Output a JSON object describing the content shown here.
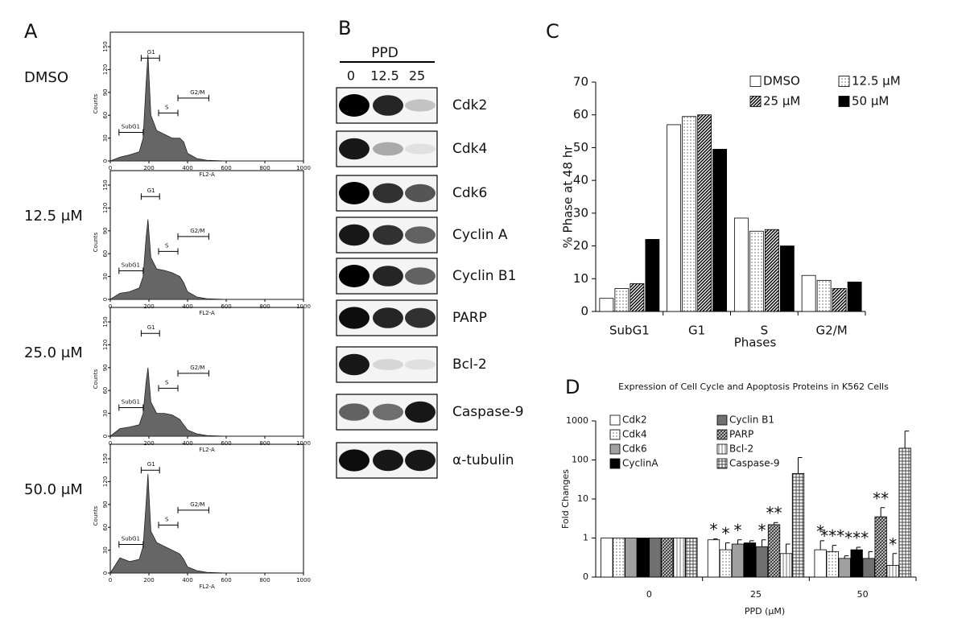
{
  "panels": {
    "labels": [
      "A",
      "B",
      "C",
      "D"
    ]
  },
  "blot": {
    "treatment": "PPD",
    "lanes": [
      "0",
      "12.5",
      "25"
    ],
    "proteins": [
      "Cdk2",
      "Cdk4",
      "Cdk6",
      "Cyclin A",
      "Cyclin B1",
      "PARP",
      "Bcl-2",
      "Caspase-9",
      "α-tubulin"
    ]
  },
  "chart_data": [
    {
      "type": "area",
      "title": "DMSO",
      "x_label": "FL2-A",
      "y_label": "Counts",
      "x": [
        0,
        50,
        100,
        150,
        170,
        185,
        195,
        210,
        240,
        280,
        320,
        360,
        380,
        400,
        450,
        500,
        600,
        800,
        1000
      ],
      "values": [
        0,
        5,
        8,
        12,
        30,
        100,
        140,
        60,
        40,
        35,
        30,
        30,
        25,
        10,
        3,
        1,
        0,
        0,
        0
      ],
      "color": "#666666",
      "xlim": [
        0,
        1000
      ],
      "ylim": [
        0,
        150
      ],
      "xticks": [
        0,
        200,
        400,
        600,
        800,
        1000
      ],
      "yticks": [
        0,
        30,
        60,
        90,
        120,
        150
      ],
      "gates": [
        {
          "label": "SubG1",
          "range": [
            45,
            170
          ]
        },
        {
          "label": "G1",
          "range": [
            160,
            255
          ]
        },
        {
          "label": "S",
          "range": [
            250,
            350
          ]
        },
        {
          "label": "G2/M",
          "range": [
            350,
            510
          ]
        }
      ]
    },
    {
      "type": "area",
      "title": "12.5 μM",
      "x_label": "FL2-A",
      "y_label": "Counts",
      "x": [
        0,
        50,
        100,
        150,
        170,
        185,
        195,
        210,
        240,
        280,
        320,
        360,
        380,
        400,
        450,
        500,
        600,
        800,
        1000
      ],
      "values": [
        0,
        8,
        10,
        15,
        30,
        80,
        105,
        55,
        40,
        38,
        35,
        30,
        22,
        10,
        3,
        1,
        0,
        0,
        0
      ],
      "color": "#666666",
      "xlim": [
        0,
        1000
      ],
      "ylim": [
        0,
        150
      ],
      "xticks": [
        0,
        200,
        400,
        600,
        800,
        1000
      ],
      "yticks": [
        0,
        30,
        60,
        90,
        120,
        150
      ],
      "gates": [
        {
          "label": "SubG1",
          "range": [
            45,
            170
          ]
        },
        {
          "label": "G1",
          "range": [
            160,
            255
          ]
        },
        {
          "label": "S",
          "range": [
            250,
            350
          ]
        },
        {
          "label": "G2/M",
          "range": [
            350,
            510
          ]
        }
      ]
    },
    {
      "type": "area",
      "title": "25.0 μM",
      "x_label": "FL2-A",
      "y_label": "Counts",
      "x": [
        0,
        50,
        100,
        150,
        170,
        185,
        195,
        210,
        240,
        280,
        320,
        360,
        380,
        400,
        450,
        500,
        600,
        800,
        1000
      ],
      "values": [
        0,
        10,
        12,
        15,
        30,
        70,
        90,
        45,
        30,
        30,
        28,
        22,
        15,
        8,
        3,
        1,
        0,
        0,
        0
      ],
      "color": "#666666",
      "xlim": [
        0,
        1000
      ],
      "ylim": [
        0,
        150
      ],
      "xticks": [
        0,
        200,
        400,
        600,
        800,
        1000
      ],
      "yticks": [
        0,
        30,
        60,
        90,
        120,
        150
      ],
      "gates": [
        {
          "label": "SubG1",
          "range": [
            45,
            170
          ]
        },
        {
          "label": "G1",
          "range": [
            160,
            255
          ]
        },
        {
          "label": "S",
          "range": [
            250,
            350
          ]
        },
        {
          "label": "G2/M",
          "range": [
            350,
            510
          ]
        }
      ]
    },
    {
      "type": "area",
      "title": "50.0 μM",
      "x_label": "FL2-A",
      "y_label": "Counts",
      "x": [
        0,
        50,
        100,
        150,
        170,
        185,
        195,
        210,
        240,
        280,
        320,
        360,
        380,
        400,
        450,
        500,
        600,
        800,
        1000
      ],
      "values": [
        0,
        20,
        15,
        18,
        35,
        90,
        130,
        55,
        40,
        35,
        30,
        25,
        18,
        8,
        3,
        1,
        0,
        0,
        0
      ],
      "color": "#666666",
      "xlim": [
        0,
        1000
      ],
      "ylim": [
        0,
        150
      ],
      "xticks": [
        0,
        200,
        400,
        600,
        800,
        1000
      ],
      "yticks": [
        0,
        30,
        60,
        90,
        120,
        150
      ],
      "gates": [
        {
          "label": "SubG1",
          "range": [
            45,
            170
          ]
        },
        {
          "label": "G1",
          "range": [
            160,
            255
          ]
        },
        {
          "label": "S",
          "range": [
            250,
            350
          ]
        },
        {
          "label": "G2/M",
          "range": [
            350,
            510
          ]
        }
      ]
    },
    {
      "type": "bar",
      "x_label": "Phases",
      "y_label": "% Phase at 48 hr",
      "categories": [
        "SubG1",
        "G1",
        "S",
        "G2/M"
      ],
      "series": [
        {
          "name": "DMSO",
          "color": "#ffffff",
          "pattern": "solid",
          "values": [
            4,
            57,
            28.5,
            11
          ]
        },
        {
          "name": "12.5 μM",
          "color": "#888888",
          "pattern": "dots",
          "values": [
            7,
            59.5,
            24.5,
            9.5
          ]
        },
        {
          "name": "25 μM",
          "color": "#000000",
          "pattern": "hatch",
          "values": [
            8.5,
            60,
            25,
            7
          ]
        },
        {
          "name": "50 μM",
          "color": "#000000",
          "pattern": "solid",
          "values": [
            22,
            49.5,
            20,
            9
          ]
        }
      ],
      "ylim": [
        0,
        70
      ],
      "yticks": [
        0,
        10,
        20,
        30,
        40,
        50,
        60,
        70
      ],
      "legend": "upper right"
    },
    {
      "type": "bar",
      "title": "Expression of Cell Cycle and Apoptosis Proteins in K562 Cells",
      "x_label": "PPD (μM)",
      "y_label": "Fold Changes",
      "log_scale": true,
      "categories": [
        "0",
        "25",
        "50"
      ],
      "series": [
        {
          "name": "Cdk2",
          "color": "#ffffff",
          "pattern": "solid",
          "values": [
            1,
            0.9,
            0.5
          ],
          "errors": [
            null,
            0.05,
            0.35
          ],
          "significance": [
            null,
            "*",
            "*"
          ]
        },
        {
          "name": "Cdk4",
          "color": "#888888",
          "pattern": "dots",
          "values": [
            1,
            0.5,
            0.45
          ],
          "errors": [
            null,
            0.25,
            0.2
          ],
          "significance": [
            null,
            "*",
            "***"
          ]
        },
        {
          "name": "Cdk6",
          "color": "#a0a0a0",
          "pattern": "solid",
          "values": [
            1,
            0.7,
            0.3
          ],
          "errors": [
            null,
            0.2,
            0.05
          ],
          "significance": [
            null,
            "*",
            null
          ]
        },
        {
          "name": "CyclinA",
          "color": "#000000",
          "pattern": "solid",
          "values": [
            1,
            0.75,
            0.5
          ],
          "errors": [
            null,
            0.1,
            0.08
          ],
          "significance": [
            null,
            null,
            "***"
          ]
        },
        {
          "name": "Cyclin B1",
          "color": "#707070",
          "pattern": "solid",
          "values": [
            1,
            0.6,
            0.3
          ],
          "errors": [
            null,
            0.3,
            0.15
          ],
          "significance": [
            null,
            "*",
            null
          ]
        },
        {
          "name": "PARP",
          "color": "#444444",
          "pattern": "cross",
          "values": [
            1,
            2.2,
            3.5
          ],
          "errors": [
            null,
            0.3,
            2.5
          ],
          "significance": [
            null,
            "**",
            "**"
          ]
        },
        {
          "name": "Bcl-2",
          "color": "#777777",
          "pattern": "vlines",
          "values": [
            1,
            0.4,
            0.2
          ],
          "errors": [
            null,
            0.3,
            0.2
          ],
          "significance": [
            null,
            null,
            "*"
          ]
        },
        {
          "name": "Caspase-9",
          "color": "#444444",
          "pattern": "grid",
          "values": [
            1,
            45,
            200
          ],
          "errors": [
            null,
            70,
            350
          ],
          "significance": [
            null,
            null,
            null
          ]
        }
      ],
      "ylim": [
        0.1,
        1000
      ],
      "yticks": [
        {
          "value": 0.1,
          "label": "0"
        },
        1,
        10,
        100,
        1000
      ],
      "legend": "upper left"
    }
  ]
}
